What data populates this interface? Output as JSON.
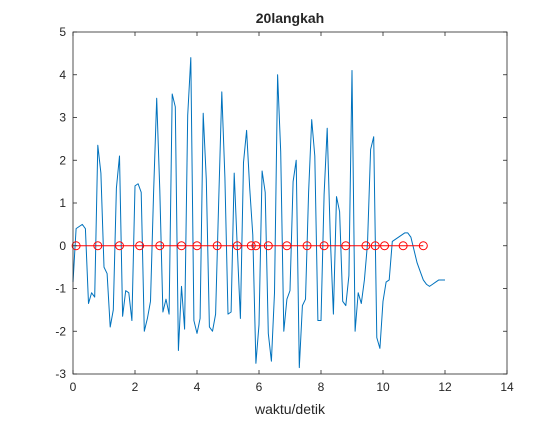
{
  "chart_data": {
    "type": "line",
    "title": "20langkah",
    "xlabel": "waktu/detik",
    "ylabel": "",
    "xlim": [
      0,
      14
    ],
    "ylim": [
      -3,
      5
    ],
    "xticks": [
      0,
      2,
      4,
      6,
      8,
      10,
      12,
      14
    ],
    "yticks": [
      -3,
      -2,
      -1,
      0,
      1,
      2,
      3,
      4,
      5
    ],
    "xtick_labels": [
      "0",
      "2",
      "4",
      "6",
      "8",
      "10",
      "12",
      "14"
    ],
    "ytick_labels": [
      "-3",
      "-2",
      "-1",
      "0",
      "1",
      "2",
      "3",
      "4",
      "5"
    ],
    "grid": false,
    "legend": "none",
    "series": [
      {
        "style": "line",
        "color": "#0072bd",
        "x": [
          0.0,
          0.1,
          0.3,
          0.4,
          0.5,
          0.6,
          0.7,
          0.8,
          0.9,
          1.0,
          1.1,
          1.2,
          1.3,
          1.4,
          1.5,
          1.6,
          1.7,
          1.8,
          1.9,
          2.0,
          2.1,
          2.2,
          2.3,
          2.4,
          2.5,
          2.6,
          2.7,
          2.8,
          2.9,
          3.0,
          3.1,
          3.2,
          3.3,
          3.4,
          3.5,
          3.6,
          3.7,
          3.8,
          3.9,
          4.0,
          4.1,
          4.2,
          4.3,
          4.4,
          4.5,
          4.6,
          4.7,
          4.8,
          4.9,
          5.0,
          5.1,
          5.2,
          5.3,
          5.4,
          5.5,
          5.6,
          5.7,
          5.8,
          5.9,
          6.0,
          6.1,
          6.2,
          6.3,
          6.4,
          6.5,
          6.6,
          6.7,
          6.8,
          6.9,
          7.0,
          7.1,
          7.2,
          7.3,
          7.4,
          7.5,
          7.6,
          7.7,
          7.8,
          7.9,
          8.0,
          8.1,
          8.2,
          8.3,
          8.4,
          8.5,
          8.6,
          8.7,
          8.8,
          8.9,
          9.0,
          9.1,
          9.2,
          9.3,
          9.4,
          9.5,
          9.6,
          9.7,
          9.8,
          9.9,
          10.0,
          10.1,
          10.2,
          10.3,
          10.4,
          10.5,
          10.6,
          10.7,
          10.8,
          10.9,
          11.0,
          11.1,
          11.2,
          11.3,
          11.4,
          11.5,
          11.6,
          11.7,
          11.8,
          11.9,
          12.0
        ],
        "y": [
          -0.85,
          0.4,
          0.5,
          0.4,
          -1.35,
          -1.1,
          -1.2,
          2.35,
          1.7,
          -0.5,
          -0.65,
          -1.9,
          -1.5,
          1.35,
          2.1,
          -1.65,
          -1.05,
          -1.1,
          -1.75,
          1.4,
          1.45,
          1.25,
          -2.0,
          -1.7,
          -1.3,
          1.25,
          3.45,
          1.3,
          -1.55,
          -1.25,
          -1.6,
          3.55,
          3.25,
          -2.45,
          -0.95,
          -1.95,
          3.05,
          4.4,
          -1.75,
          -2.05,
          -1.7,
          3.1,
          1.55,
          -1.9,
          -2.0,
          -1.6,
          1.05,
          3.6,
          1.6,
          -1.6,
          -1.55,
          1.7,
          -0.05,
          -1.7,
          1.95,
          2.7,
          1.35,
          0.25,
          -2.75,
          -1.85,
          1.75,
          1.25,
          -2.05,
          -2.7,
          -1.1,
          4.0,
          2.2,
          -2.0,
          -1.25,
          -1.05,
          1.5,
          2.0,
          -2.85,
          -1.4,
          -1.25,
          1.25,
          2.95,
          2.1,
          -1.75,
          -1.75,
          1.2,
          2.75,
          0.2,
          -1.6,
          1.15,
          0.8,
          -1.3,
          -1.4,
          -0.7,
          4.1,
          -2.0,
          -1.1,
          -1.35,
          -0.8,
          0.05,
          2.25,
          2.55,
          -2.15,
          -2.4,
          -1.3,
          -0.85,
          -0.8,
          0.1,
          0.15,
          0.2,
          0.25,
          0.3,
          0.3,
          0.2,
          -0.1,
          -0.4,
          -0.6,
          -0.8,
          -0.9,
          -0.95,
          -0.9,
          -0.85,
          -0.8,
          -0.8,
          -0.8
        ]
      },
      {
        "style": "line-circle",
        "color": "#ff0000",
        "x": [
          0.1,
          0.8,
          1.5,
          2.15,
          2.8,
          3.5,
          4.0,
          4.65,
          5.3,
          5.75,
          5.9,
          6.3,
          6.9,
          7.55,
          8.1,
          8.8,
          9.45,
          9.75,
          10.05,
          10.65,
          11.3
        ],
        "y": [
          0,
          0,
          0,
          0,
          0,
          0,
          0,
          0,
          0,
          0,
          0,
          0,
          0,
          0,
          0,
          0,
          0,
          0,
          0,
          0,
          0
        ]
      }
    ]
  }
}
